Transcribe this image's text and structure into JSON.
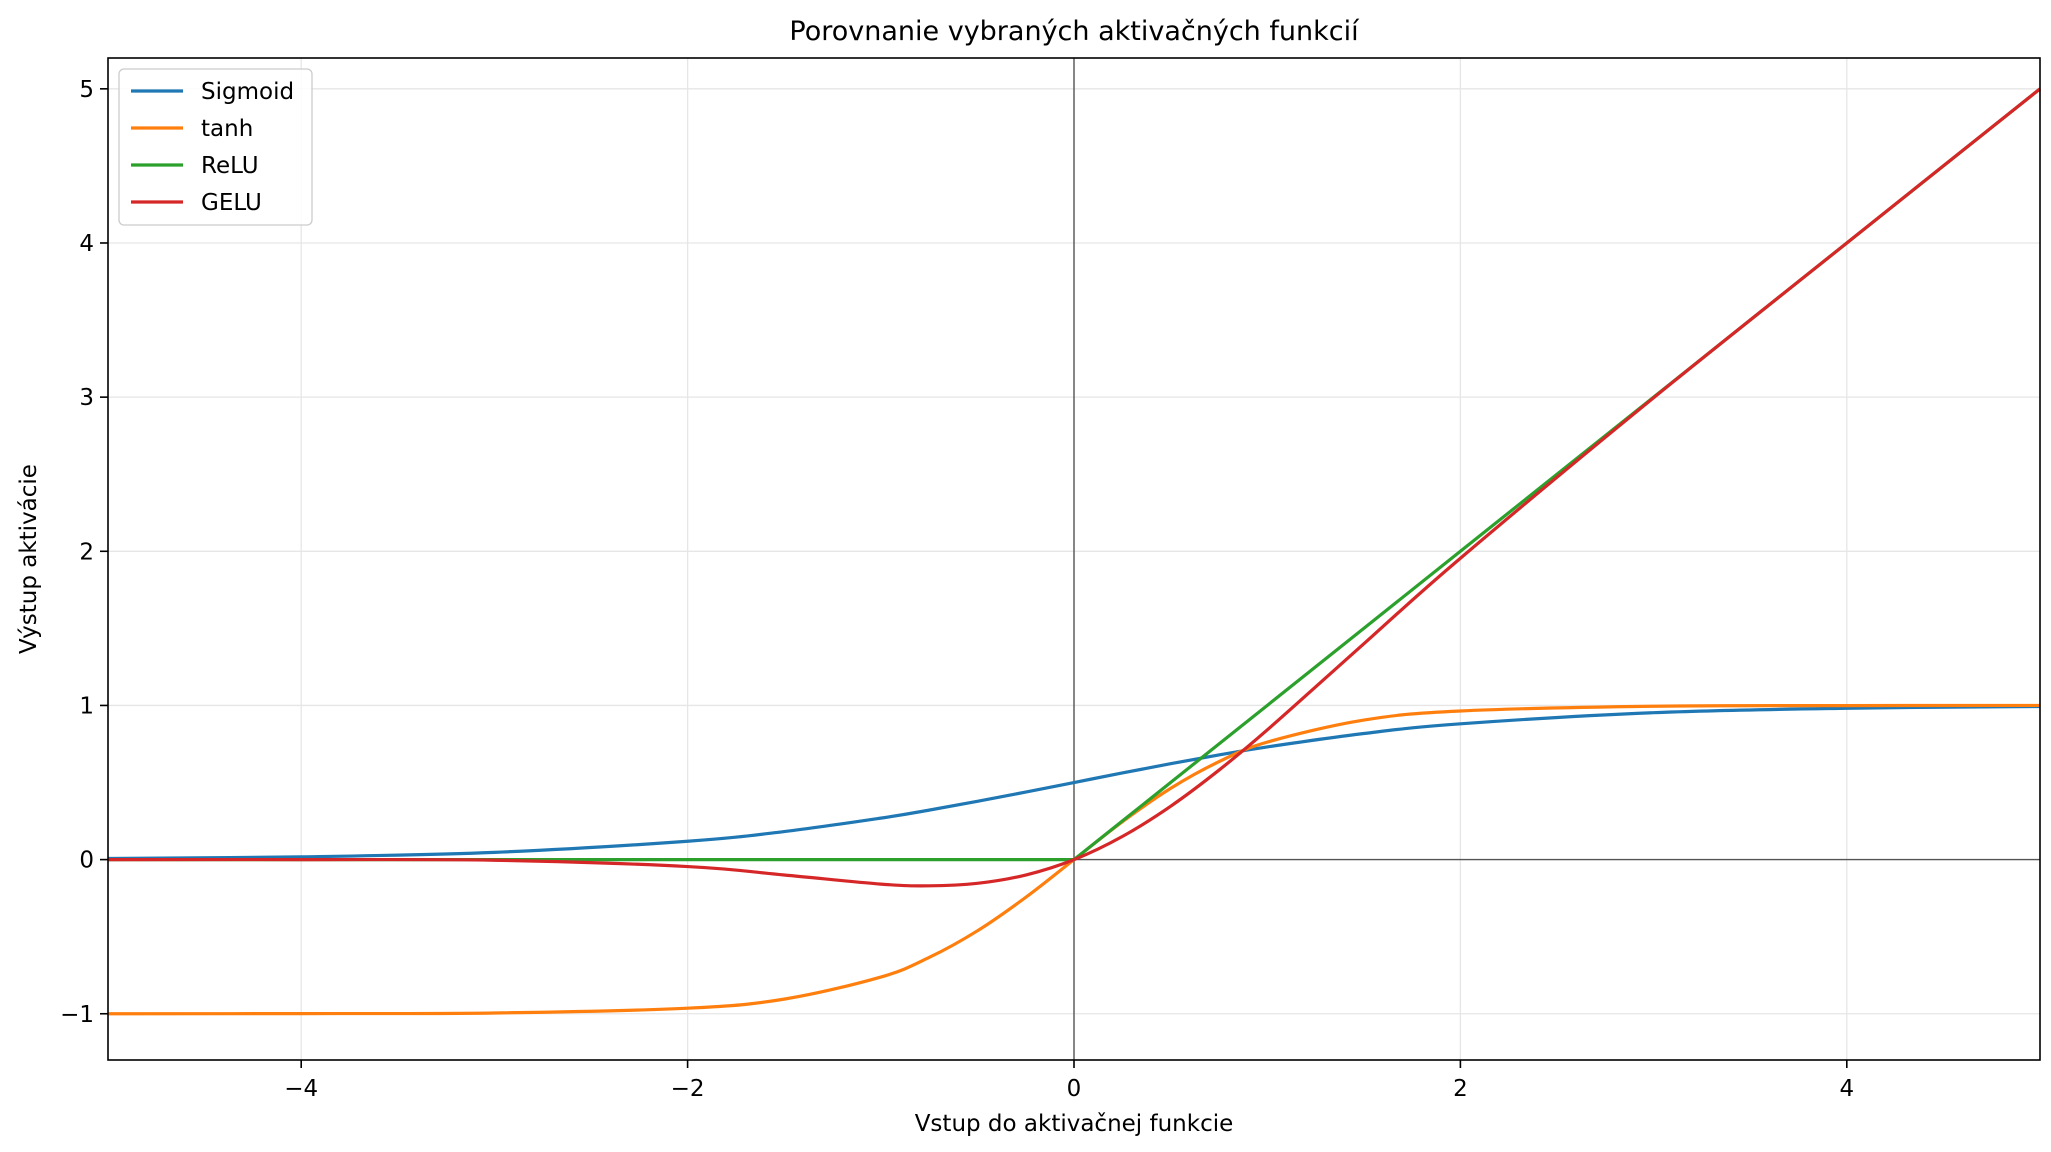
{
  "chart_data": {
    "type": "line",
    "title": "Porovnanie vybraných aktivačných funkcií",
    "xlabel": "Vstup do aktivačnej funkcie",
    "ylabel": "Výstup aktivácie",
    "xlim": [
      -5,
      5
    ],
    "ylim": [
      -1.3,
      5.2
    ],
    "xticks": [
      -4,
      -2,
      0,
      2,
      4
    ],
    "xtick_labels": [
      "−4",
      "−2",
      "0",
      "2",
      "4"
    ],
    "yticks": [
      -1,
      0,
      1,
      2,
      3,
      4,
      5
    ],
    "ytick_labels": [
      "−1",
      "0",
      "1",
      "2",
      "3",
      "4",
      "5"
    ],
    "grid": true,
    "reference_lines": {
      "x0": true,
      "y0": true
    },
    "legend_position": "top-left",
    "x": [
      -5,
      -4,
      -3,
      -2,
      -1.5,
      -1,
      -0.75,
      -0.5,
      -0.25,
      0,
      0.25,
      0.5,
      0.75,
      1,
      1.5,
      2,
      3,
      4,
      5
    ],
    "series": [
      {
        "name": "Sigmoid",
        "color": "#1f77b4",
        "values": [
          0.007,
          0.018,
          0.047,
          0.119,
          0.182,
          0.269,
          0.321,
          0.378,
          0.438,
          0.5,
          0.562,
          0.622,
          0.679,
          0.731,
          0.818,
          0.881,
          0.953,
          0.982,
          0.993
        ]
      },
      {
        "name": "tanh",
        "color": "#ff7f0e",
        "values": [
          -1.0,
          -0.999,
          -0.995,
          -0.964,
          -0.905,
          -0.762,
          -0.635,
          -0.462,
          -0.245,
          0,
          0.245,
          0.462,
          0.635,
          0.762,
          0.905,
          0.964,
          0.995,
          0.999,
          1.0
        ]
      },
      {
        "name": "ReLU",
        "color": "#2ca02c",
        "values": [
          0,
          0,
          0,
          0,
          0,
          0,
          0,
          0,
          0,
          0,
          0.25,
          0.5,
          0.75,
          1,
          1.5,
          2,
          3,
          4,
          5
        ]
      },
      {
        "name": "GELU",
        "color": "#d62728",
        "values": [
          0,
          -0.0001,
          -0.004,
          -0.045,
          -0.1,
          -0.159,
          -0.17,
          -0.154,
          -0.1,
          0,
          0.15,
          0.346,
          0.58,
          0.841,
          1.4,
          1.955,
          2.996,
          4.0,
          5.0
        ]
      }
    ]
  }
}
